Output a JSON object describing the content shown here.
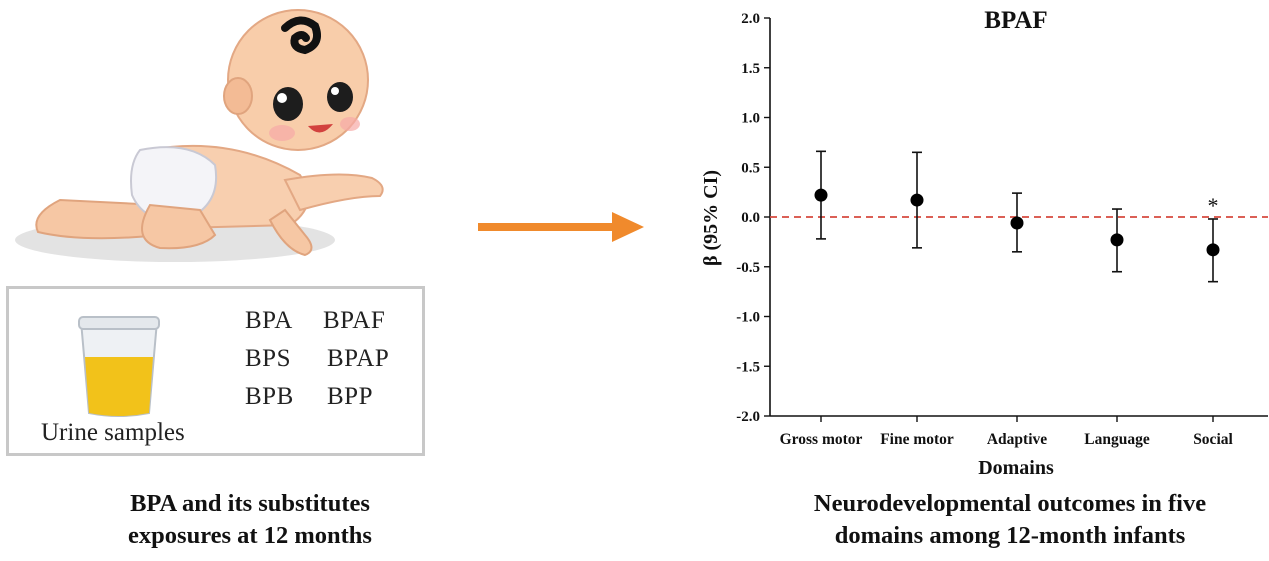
{
  "left_panel": {
    "compounds": [
      "BPA",
      "BPAF",
      "BPS",
      "BPAP",
      "BPB",
      "BPP"
    ],
    "urine_label": "Urine samples",
    "caption_line1": "BPA and its substitutes",
    "caption_line2": "exposures at 12 months"
  },
  "right_panel": {
    "caption_line1": "Neurodevelopmental outcomes in five",
    "caption_line2": "domains among 12-month infants"
  },
  "colors": {
    "arrow": "#f08a2c",
    "reference_line": "#d64a3f",
    "points": "#000000",
    "urine": "#f2c21a",
    "box_border": "#c8c8c8"
  },
  "chart_data": {
    "type": "scatter",
    "title": "BPAF",
    "xlabel": "Domains",
    "ylabel": "β (95% CI)",
    "categories": [
      "Gross motor",
      "Fine motor",
      "Adaptive",
      "Language",
      "Social"
    ],
    "values": [
      0.22,
      0.17,
      -0.06,
      -0.23,
      -0.33
    ],
    "ci_lower": [
      -0.22,
      -0.31,
      -0.35,
      -0.55,
      -0.65
    ],
    "ci_upper": [
      0.66,
      0.65,
      0.24,
      0.08,
      -0.02
    ],
    "annotations": [
      "",
      "",
      "",
      "",
      "*"
    ],
    "ylim": [
      -2.0,
      2.0
    ],
    "yticks": [
      "2.0",
      "1.5",
      "1.0",
      "0.5",
      "0.0",
      "-0.5",
      "-1.0",
      "-1.5",
      "-2.0"
    ],
    "reference_line": 0,
    "grid": false
  }
}
